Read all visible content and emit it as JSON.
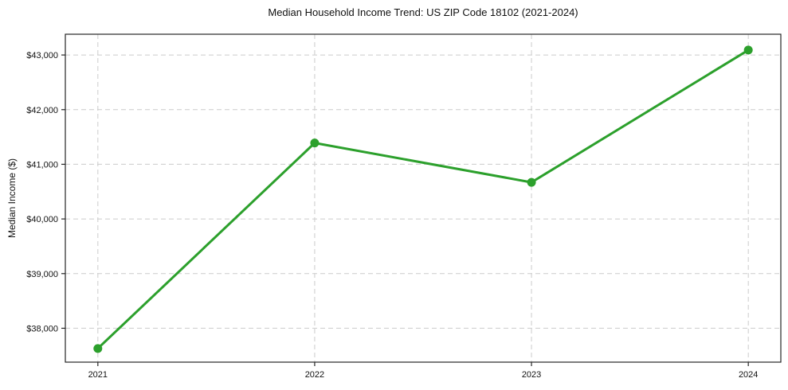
{
  "chart_data": {
    "type": "line",
    "title": "Median Household Income Trend: US ZIP Code 18102 (2021-2024)",
    "xlabel": "",
    "ylabel": "Median Income ($)",
    "x": [
      2021,
      2022,
      2023,
      2024
    ],
    "xtick_labels": [
      "2021",
      "2022",
      "2023",
      "2024"
    ],
    "series": [
      {
        "name": "Median Income",
        "values": [
          37630,
          41390,
          40670,
          43090
        ],
        "color": "#2ca02c"
      }
    ],
    "yticks": [
      38000,
      39000,
      40000,
      41000,
      42000,
      43000
    ],
    "ytick_labels": [
      "$38,000",
      "$39,000",
      "$40,000",
      "$41,000",
      "$42,000",
      "$43,000"
    ],
    "ylim": [
      37380,
      43380
    ],
    "xlim": [
      2020.85,
      2024.15
    ],
    "grid": true,
    "legend_position": "none",
    "colors": {
      "line": "#2ca02c",
      "grid": "#cccccc",
      "spine": "#262626",
      "background": "#ffffff"
    }
  }
}
